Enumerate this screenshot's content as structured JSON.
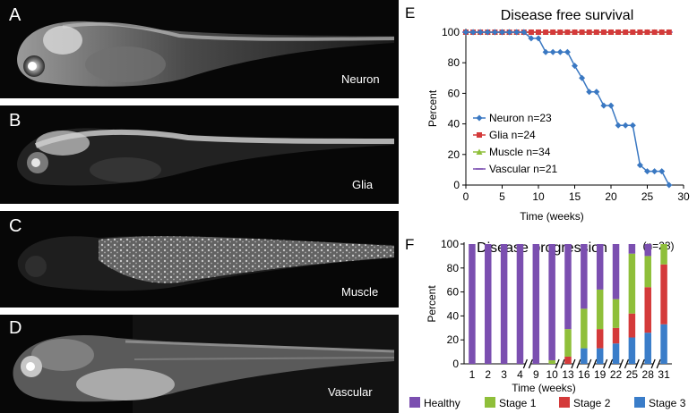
{
  "panels": [
    {
      "letter": "A",
      "caption": "Neuron"
    },
    {
      "letter": "B",
      "caption": "Glia"
    },
    {
      "letter": "C",
      "caption": "Muscle"
    },
    {
      "letter": "D",
      "caption": "Vascular"
    }
  ],
  "panel_E": {
    "letter": "E"
  },
  "panel_F": {
    "letter": "F"
  },
  "chart_data": [
    {
      "type": "line",
      "title": "Disease free survival",
      "xlabel": "Time (weeks)",
      "ylabel": "Percent",
      "xlim": [
        0,
        30
      ],
      "ylim": [
        0,
        100
      ],
      "xticks": [
        0,
        5,
        10,
        15,
        20,
        25,
        30
      ],
      "yticks": [
        0,
        20,
        40,
        60,
        80,
        100
      ],
      "legend_position": "lower-left",
      "series": [
        {
          "name": "Neuron n=23",
          "color": "#3a78c2",
          "marker": "diamond",
          "x": [
            0,
            1,
            2,
            3,
            4,
            5,
            6,
            7,
            8,
            9,
            10,
            11,
            12,
            13,
            14,
            15,
            16,
            17,
            18,
            19,
            20,
            21,
            22,
            23,
            24,
            25,
            26,
            27,
            28
          ],
          "y": [
            100,
            100,
            100,
            100,
            100,
            100,
            100,
            100,
            100,
            96,
            96,
            87,
            87,
            87,
            87,
            78,
            70,
            61,
            61,
            52,
            52,
            39,
            39,
            39,
            13,
            9,
            9,
            9,
            0
          ]
        },
        {
          "name": "Glia n=24",
          "color": "#d43a3a",
          "marker": "square",
          "x": [
            0,
            1,
            2,
            3,
            4,
            5,
            6,
            7,
            8,
            9,
            10,
            11,
            12,
            13,
            14,
            15,
            16,
            17,
            18,
            19,
            20,
            21,
            22,
            23,
            24,
            25,
            26,
            27,
            28
          ],
          "y": [
            100,
            100,
            100,
            100,
            100,
            100,
            100,
            100,
            100,
            100,
            100,
            100,
            100,
            100,
            100,
            100,
            100,
            100,
            100,
            100,
            100,
            100,
            100,
            100,
            100,
            100,
            100,
            100,
            100
          ]
        },
        {
          "name": "Muscle n=34",
          "color": "#8fbf3a",
          "marker": "triangle",
          "x": [
            0,
            1,
            2,
            3,
            4,
            5,
            6,
            7,
            8,
            9,
            10,
            11,
            12,
            13,
            14,
            15,
            16,
            17,
            18,
            19,
            20,
            21,
            22,
            23,
            24,
            25,
            26,
            27,
            28
          ],
          "y": [
            100,
            100,
            100,
            100,
            100,
            100,
            100,
            100,
            100,
            100,
            100,
            100,
            100,
            100,
            100,
            100,
            100,
            100,
            100,
            100,
            100,
            100,
            100,
            100,
            100,
            100,
            100,
            100,
            100
          ]
        },
        {
          "name": "Vascular n=21",
          "color": "#7b4fb0",
          "marker": "cross",
          "x": [
            0,
            1,
            2,
            3,
            4,
            5,
            6,
            7,
            8,
            9,
            10,
            11,
            12,
            13,
            14,
            15,
            16,
            17,
            18,
            19,
            20,
            21,
            22,
            23,
            24,
            25,
            26,
            27,
            28
          ],
          "y": [
            100,
            100,
            100,
            100,
            100,
            100,
            100,
            100,
            100,
            100,
            100,
            100,
            100,
            100,
            100,
            100,
            100,
            100,
            100,
            100,
            100,
            100,
            100,
            100,
            100,
            100,
            100,
            100,
            100
          ]
        }
      ]
    },
    {
      "type": "bar",
      "stacked": true,
      "title": "Disease progression",
      "subtitle": "(n=23)",
      "xlabel": "Time (weeks)",
      "ylabel": "Percent",
      "ylim": [
        0,
        100
      ],
      "yticks": [
        0,
        20,
        40,
        60,
        80,
        100
      ],
      "legend_position": "bottom",
      "categories": [
        "1",
        "2",
        "3",
        "4",
        "9",
        "10",
        "13",
        "16",
        "19",
        "22",
        "25",
        "28",
        "31"
      ],
      "axis_breaks_after": [
        "4",
        "10",
        "13",
        "16",
        "19",
        "22",
        "25",
        "28"
      ],
      "series": [
        {
          "name": "Stage 3",
          "color": "#3a7dc9",
          "values": [
            0,
            0,
            0,
            0,
            0,
            0,
            0,
            13,
            13,
            17,
            22,
            26,
            33
          ]
        },
        {
          "name": "Stage 2",
          "color": "#d43a3a",
          "values": [
            0,
            0,
            0,
            0,
            0,
            0,
            6,
            0,
            16,
            13,
            20,
            38,
            50
          ]
        },
        {
          "name": "Stage 1",
          "color": "#8fbf3a",
          "values": [
            0,
            0,
            0,
            0,
            0,
            3,
            23,
            33,
            33,
            24,
            50,
            26,
            17
          ]
        },
        {
          "name": "Healthy",
          "color": "#7b4fb0",
          "values": [
            100,
            100,
            100,
            100,
            100,
            97,
            71,
            54,
            38,
            46,
            8,
            10,
            0
          ]
        }
      ],
      "legend_order": [
        "Healthy",
        "Stage 1",
        "Stage 2",
        "Stage 3"
      ]
    }
  ]
}
